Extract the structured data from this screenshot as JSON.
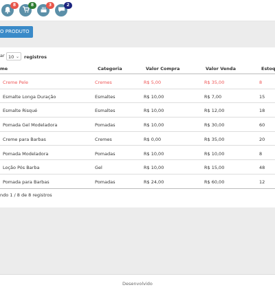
{
  "topbar": {
    "icons": [
      {
        "name": "bell-icon",
        "badge": "8",
        "badge_color": "#e8564a"
      },
      {
        "name": "cart-icon",
        "badge": "8",
        "badge_color": "#2e7d32"
      },
      {
        "name": "cake-icon",
        "badge": "3",
        "badge_color": "#e8564a"
      },
      {
        "name": "chat-icon",
        "badge": "2",
        "badge_color": "#1a237e"
      }
    ]
  },
  "toolbar": {
    "new_product_label": "VO PRODUTO"
  },
  "length": {
    "prefix": "ar",
    "value": "10",
    "suffix": "registros"
  },
  "table": {
    "headers": {
      "name": "me",
      "category": "Categoria",
      "cost": "Valor Compra",
      "price": "Valor Venda",
      "stock": "Estoqu"
    },
    "rows": [
      {
        "name": "Creme Pele",
        "category": "Cremes",
        "cost": "R$ 5,00",
        "price": "R$ 35,00",
        "stock": "8",
        "highlight": true
      },
      {
        "name": "Esmalte Longa Duração",
        "category": "Esmaltes",
        "cost": "R$ 10,00",
        "price": "R$ 7,00",
        "stock": "15"
      },
      {
        "name": "Esmalte Risqué",
        "category": "Esmaltes",
        "cost": "R$ 10,00",
        "price": "R$ 12,00",
        "stock": "18"
      },
      {
        "name": "Pomada Gel Modeladora",
        "category": "Pomadas",
        "cost": "R$ 10,00",
        "price": "R$ 30,00",
        "stock": "60"
      },
      {
        "name": "Creme para Barbas",
        "category": "Cremes",
        "cost": "R$ 0,00",
        "price": "R$ 35,00",
        "stock": "20"
      },
      {
        "name": "Pomada Modeladora",
        "category": "Pomadas",
        "cost": "R$ 10,00",
        "price": "R$ 10,00",
        "stock": "8"
      },
      {
        "name": "Loção Pós Barba",
        "category": "Gel",
        "cost": "R$ 10,00",
        "price": "R$ 15,00",
        "stock": "48"
      },
      {
        "name": "Pomada para Barbas",
        "category": "Pomadas",
        "cost": "R$ 24,00",
        "price": "R$ 60,00",
        "stock": "12"
      }
    ]
  },
  "info": "ndo 1 / 8 de 8 registros",
  "footer": "Desenvolvido"
}
